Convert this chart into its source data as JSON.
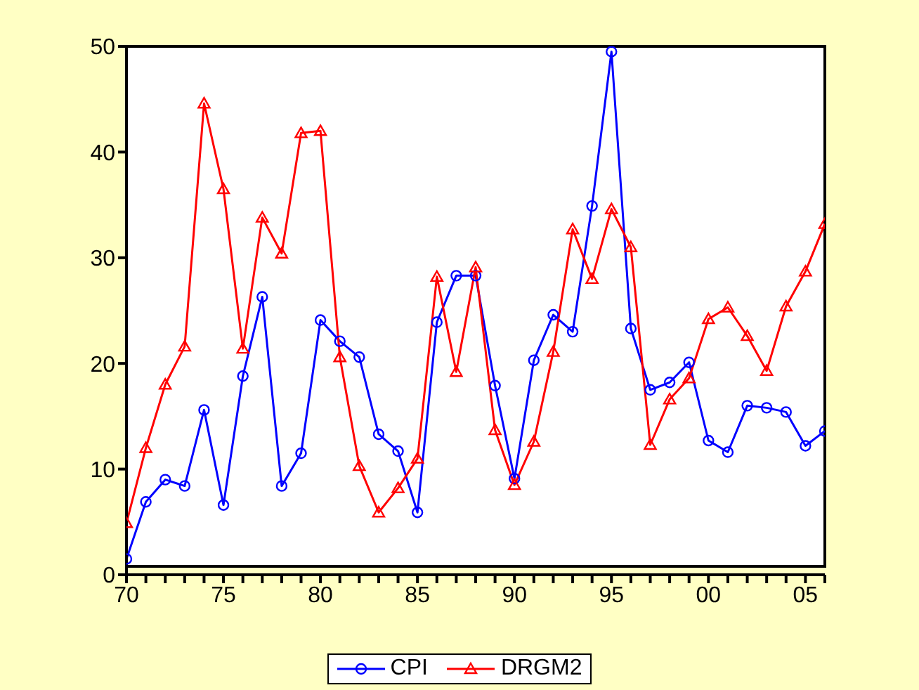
{
  "chart_data": {
    "type": "line",
    "x": [
      1970,
      1971,
      1972,
      1973,
      1974,
      1975,
      1976,
      1977,
      1978,
      1979,
      1980,
      1981,
      1982,
      1983,
      1984,
      1985,
      1986,
      1987,
      1988,
      1989,
      1990,
      1991,
      1992,
      1993,
      1994,
      1995,
      1996,
      1997,
      1998,
      1999,
      2000,
      2001,
      2002,
      2003,
      2004,
      2005,
      2006
    ],
    "series": [
      {
        "name": "CPI",
        "color": "#0000ff",
        "marker": "circle",
        "values": [
          1.5,
          6.9,
          9.0,
          8.4,
          15.6,
          6.6,
          18.8,
          26.3,
          8.4,
          11.5,
          24.1,
          22.1,
          20.6,
          13.3,
          11.7,
          5.9,
          23.9,
          28.3,
          28.3,
          17.9,
          9.1,
          20.3,
          24.6,
          23.0,
          34.9,
          49.5,
          23.3,
          17.5,
          18.2,
          20.1,
          12.7,
          11.6,
          16.0,
          15.8,
          15.4,
          12.2,
          13.6
        ]
      },
      {
        "name": "DRGM2",
        "color": "#ff0000",
        "marker": "triangle",
        "values": [
          4.9,
          12.0,
          18.0,
          21.6,
          44.6,
          36.5,
          21.4,
          33.8,
          30.4,
          41.8,
          42.0,
          20.6,
          10.3,
          5.9,
          8.2,
          11.0,
          28.2,
          19.2,
          29.1,
          13.7,
          8.5,
          12.6,
          21.1,
          32.7,
          28.0,
          34.6,
          31.0,
          12.3,
          16.6,
          18.6,
          24.2,
          25.3,
          22.6,
          19.3,
          25.4,
          28.7,
          33.2
        ]
      }
    ],
    "xlim": [
      1970,
      2006
    ],
    "xticks": [
      {
        "value": 1970,
        "label": "70"
      },
      {
        "value": 1971,
        "label": null
      },
      {
        "value": 1972,
        "label": null
      },
      {
        "value": 1973,
        "label": null
      },
      {
        "value": 1974,
        "label": null
      },
      {
        "value": 1975,
        "label": "75"
      },
      {
        "value": 1976,
        "label": null
      },
      {
        "value": 1977,
        "label": null
      },
      {
        "value": 1978,
        "label": null
      },
      {
        "value": 1979,
        "label": null
      },
      {
        "value": 1980,
        "label": "80"
      },
      {
        "value": 1981,
        "label": null
      },
      {
        "value": 1982,
        "label": null
      },
      {
        "value": 1983,
        "label": null
      },
      {
        "value": 1984,
        "label": null
      },
      {
        "value": 1985,
        "label": "85"
      },
      {
        "value": 1986,
        "label": null
      },
      {
        "value": 1987,
        "label": null
      },
      {
        "value": 1988,
        "label": null
      },
      {
        "value": 1989,
        "label": null
      },
      {
        "value": 1990,
        "label": "90"
      },
      {
        "value": 1991,
        "label": null
      },
      {
        "value": 1992,
        "label": null
      },
      {
        "value": 1993,
        "label": null
      },
      {
        "value": 1994,
        "label": null
      },
      {
        "value": 1995,
        "label": "95"
      },
      {
        "value": 1996,
        "label": null
      },
      {
        "value": 1997,
        "label": null
      },
      {
        "value": 1998,
        "label": null
      },
      {
        "value": 1999,
        "label": null
      },
      {
        "value": 2000,
        "label": "00"
      },
      {
        "value": 2001,
        "label": null
      },
      {
        "value": 2002,
        "label": null
      },
      {
        "value": 2003,
        "label": null
      },
      {
        "value": 2004,
        "label": null
      },
      {
        "value": 2005,
        "label": "05"
      },
      {
        "value": 2006,
        "label": null
      }
    ],
    "ylim": [
      0,
      50
    ],
    "yticks": [
      0,
      10,
      20,
      30,
      40,
      50
    ],
    "grid": false,
    "legend": "bottom",
    "line_style": "solid"
  }
}
